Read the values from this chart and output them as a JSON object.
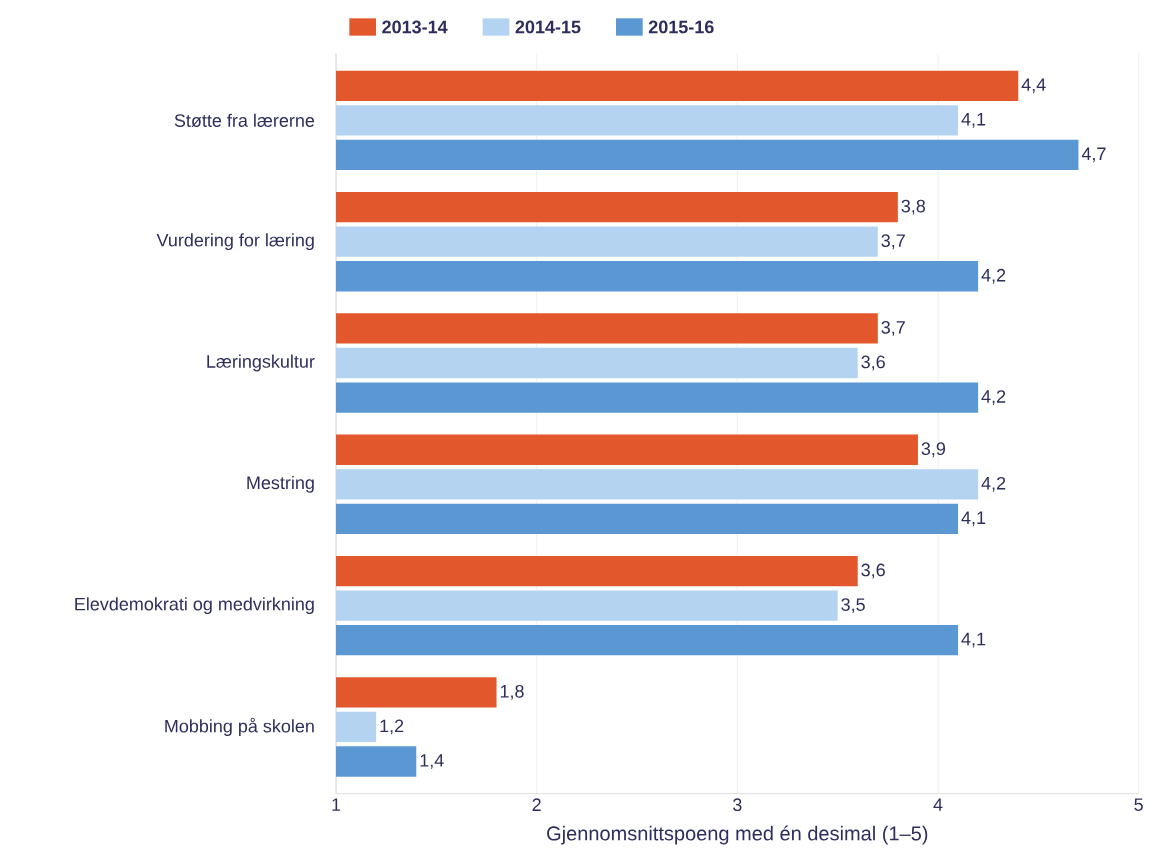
{
  "chart_data": {
    "type": "bar",
    "orientation": "horizontal",
    "xlabel": "Gjennomsnittspoeng med én desimal (1–5)",
    "categories": [
      "Støtte fra lærerne",
      "Vurdering for læring",
      "Læringskultur",
      "Mestring",
      "Elevdemokrati og medvirkning",
      "Mobbing på skolen"
    ],
    "series": [
      {
        "name": "2013-14",
        "color": "#e2572b",
        "values": [
          4.4,
          3.8,
          3.7,
          3.9,
          3.6,
          1.8
        ],
        "value_labels": [
          "4,4",
          "3,8",
          "3,7",
          "3,9",
          "3,6",
          "1,8"
        ]
      },
      {
        "name": "2014-15",
        "color": "#b3d3f0",
        "values": [
          4.1,
          3.7,
          3.6,
          4.2,
          3.5,
          1.2
        ],
        "value_labels": [
          "4,1",
          "3,7",
          "3,6",
          "4,2",
          "3,5",
          "1,2"
        ]
      },
      {
        "name": "2015-16",
        "color": "#5b97d2",
        "values": [
          4.7,
          4.2,
          4.2,
          4.1,
          4.1,
          1.4
        ],
        "value_labels": [
          "4,7",
          "4,2",
          "4,2",
          "4,1",
          "4,1",
          "1,4"
        ]
      }
    ],
    "xlim": [
      1,
      5
    ],
    "xticks": [
      1,
      2,
      3,
      4,
      5
    ],
    "grid": "x",
    "legend": "top"
  }
}
